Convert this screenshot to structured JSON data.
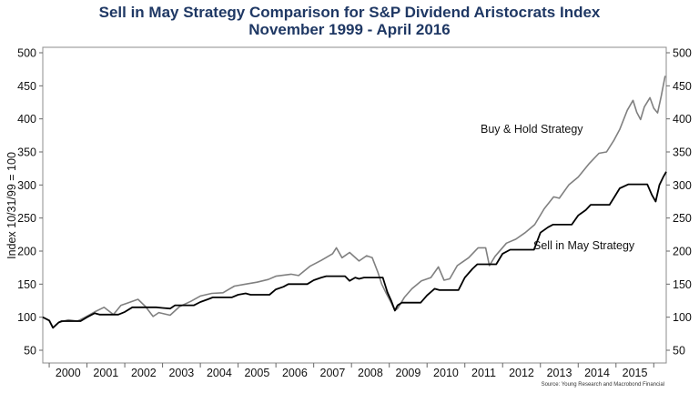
{
  "chart_data": {
    "type": "line",
    "title": "Sell in May Strategy Comparison for S&P Dividend Aristocrats Index",
    "subtitle": "November 1999 - April 2016",
    "ylabel": "Index 10/31/99 = 100",
    "xlabel": "",
    "ylim": [
      50,
      500
    ],
    "xlim": [
      1999.83,
      2016.33
    ],
    "yticks": [
      50,
      100,
      150,
      200,
      250,
      300,
      350,
      400,
      450,
      500
    ],
    "xtick_labels": [
      "2000",
      "2001",
      "2002",
      "2003",
      "2004",
      "2005",
      "2006",
      "2007",
      "2008",
      "2009",
      "2010",
      "2011",
      "2012",
      "2013",
      "2014",
      "2015"
    ],
    "source": "Source: Young Research and Macrobond Financial",
    "series": [
      {
        "name": "Buy & Hold Strategy",
        "color": "#808080",
        "points": [
          [
            1999.83,
            100
          ],
          [
            2000.0,
            95
          ],
          [
            2000.1,
            84
          ],
          [
            2000.25,
            92
          ],
          [
            2000.5,
            96
          ],
          [
            2000.75,
            94
          ],
          [
            2000.95,
            100
          ],
          [
            2001.2,
            108
          ],
          [
            2001.45,
            115
          ],
          [
            2001.7,
            104
          ],
          [
            2001.9,
            118
          ],
          [
            2002.1,
            122
          ],
          [
            2002.35,
            127
          ],
          [
            2002.55,
            116
          ],
          [
            2002.75,
            101
          ],
          [
            2002.9,
            107
          ],
          [
            2003.2,
            103
          ],
          [
            2003.45,
            116
          ],
          [
            2003.75,
            124
          ],
          [
            2004.0,
            132
          ],
          [
            2004.3,
            136
          ],
          [
            2004.6,
            137
          ],
          [
            2004.9,
            147
          ],
          [
            2005.2,
            150
          ],
          [
            2005.5,
            153
          ],
          [
            2005.8,
            157
          ],
          [
            2006.0,
            162
          ],
          [
            2006.4,
            165
          ],
          [
            2006.6,
            163
          ],
          [
            2006.9,
            177
          ],
          [
            2007.2,
            186
          ],
          [
            2007.5,
            196
          ],
          [
            2007.6,
            205
          ],
          [
            2007.75,
            190
          ],
          [
            2007.95,
            198
          ],
          [
            2008.2,
            185
          ],
          [
            2008.4,
            193
          ],
          [
            2008.55,
            190
          ],
          [
            2008.7,
            168
          ],
          [
            2008.8,
            150
          ],
          [
            2008.92,
            136
          ],
          [
            2009.05,
            122
          ],
          [
            2009.15,
            110
          ],
          [
            2009.22,
            113
          ],
          [
            2009.4,
            130
          ],
          [
            2009.6,
            143
          ],
          [
            2009.85,
            155
          ],
          [
            2010.1,
            160
          ],
          [
            2010.3,
            176
          ],
          [
            2010.45,
            156
          ],
          [
            2010.6,
            158
          ],
          [
            2010.8,
            178
          ],
          [
            2011.1,
            190
          ],
          [
            2011.35,
            205
          ],
          [
            2011.55,
            205
          ],
          [
            2011.65,
            178
          ],
          [
            2011.8,
            192
          ],
          [
            2012.1,
            212
          ],
          [
            2012.35,
            218
          ],
          [
            2012.6,
            228
          ],
          [
            2012.85,
            240
          ],
          [
            2013.1,
            264
          ],
          [
            2013.35,
            282
          ],
          [
            2013.5,
            280
          ],
          [
            2013.75,
            300
          ],
          [
            2014.0,
            312
          ],
          [
            2014.3,
            333
          ],
          [
            2014.55,
            348
          ],
          [
            2014.75,
            350
          ],
          [
            2014.95,
            368
          ],
          [
            2015.1,
            384
          ],
          [
            2015.3,
            413
          ],
          [
            2015.45,
            428
          ],
          [
            2015.55,
            410
          ],
          [
            2015.65,
            399
          ],
          [
            2015.75,
            418
          ],
          [
            2015.9,
            432
          ],
          [
            2016.0,
            416
          ],
          [
            2016.1,
            409
          ],
          [
            2016.2,
            435
          ],
          [
            2016.3,
            465
          ]
        ]
      },
      {
        "name": "Sell in May Strategy",
        "color": "#000000",
        "points": [
          [
            1999.83,
            100
          ],
          [
            2000.0,
            95
          ],
          [
            2000.1,
            84
          ],
          [
            2000.25,
            92
          ],
          [
            2000.33,
            94
          ],
          [
            2000.83,
            94
          ],
          [
            2001.0,
            100
          ],
          [
            2001.2,
            106
          ],
          [
            2001.33,
            104
          ],
          [
            2001.83,
            104
          ],
          [
            2002.0,
            108
          ],
          [
            2002.2,
            115
          ],
          [
            2002.33,
            115
          ],
          [
            2002.83,
            115
          ],
          [
            2003.0,
            114
          ],
          [
            2003.2,
            113
          ],
          [
            2003.33,
            118
          ],
          [
            2003.83,
            118
          ],
          [
            2004.0,
            123
          ],
          [
            2004.2,
            127
          ],
          [
            2004.33,
            130
          ],
          [
            2004.83,
            130
          ],
          [
            2005.0,
            134
          ],
          [
            2005.2,
            136
          ],
          [
            2005.33,
            134
          ],
          [
            2005.83,
            134
          ],
          [
            2006.0,
            142
          ],
          [
            2006.2,
            146
          ],
          [
            2006.33,
            150
          ],
          [
            2006.83,
            150
          ],
          [
            2007.0,
            156
          ],
          [
            2007.2,
            160
          ],
          [
            2007.33,
            162
          ],
          [
            2007.83,
            162
          ],
          [
            2007.95,
            155
          ],
          [
            2008.1,
            160
          ],
          [
            2008.2,
            158
          ],
          [
            2008.33,
            160
          ],
          [
            2008.83,
            160
          ],
          [
            2008.95,
            138
          ],
          [
            2009.05,
            125
          ],
          [
            2009.15,
            110
          ],
          [
            2009.22,
            118
          ],
          [
            2009.33,
            122
          ],
          [
            2009.83,
            122
          ],
          [
            2010.0,
            133
          ],
          [
            2010.2,
            143
          ],
          [
            2010.33,
            141
          ],
          [
            2010.83,
            141
          ],
          [
            2011.0,
            160
          ],
          [
            2011.2,
            173
          ],
          [
            2011.33,
            180
          ],
          [
            2011.83,
            180
          ],
          [
            2012.0,
            196
          ],
          [
            2012.2,
            202
          ],
          [
            2012.33,
            202
          ],
          [
            2012.83,
            202
          ],
          [
            2013.0,
            228
          ],
          [
            2013.2,
            236
          ],
          [
            2013.33,
            240
          ],
          [
            2013.83,
            240
          ],
          [
            2014.0,
            254
          ],
          [
            2014.2,
            262
          ],
          [
            2014.33,
            270
          ],
          [
            2014.83,
            270
          ],
          [
            2014.95,
            281
          ],
          [
            2015.1,
            295
          ],
          [
            2015.33,
            301
          ],
          [
            2015.83,
            301
          ],
          [
            2015.95,
            285
          ],
          [
            2016.05,
            275
          ],
          [
            2016.15,
            300
          ],
          [
            2016.25,
            312
          ],
          [
            2016.33,
            320
          ]
        ]
      }
    ],
    "annotations": [
      {
        "text": "Buy & Hold Strategy",
        "series": "Buy & Hold Strategy"
      },
      {
        "text": "Sell in May Strategy",
        "series": "Sell in May Strategy"
      }
    ]
  }
}
